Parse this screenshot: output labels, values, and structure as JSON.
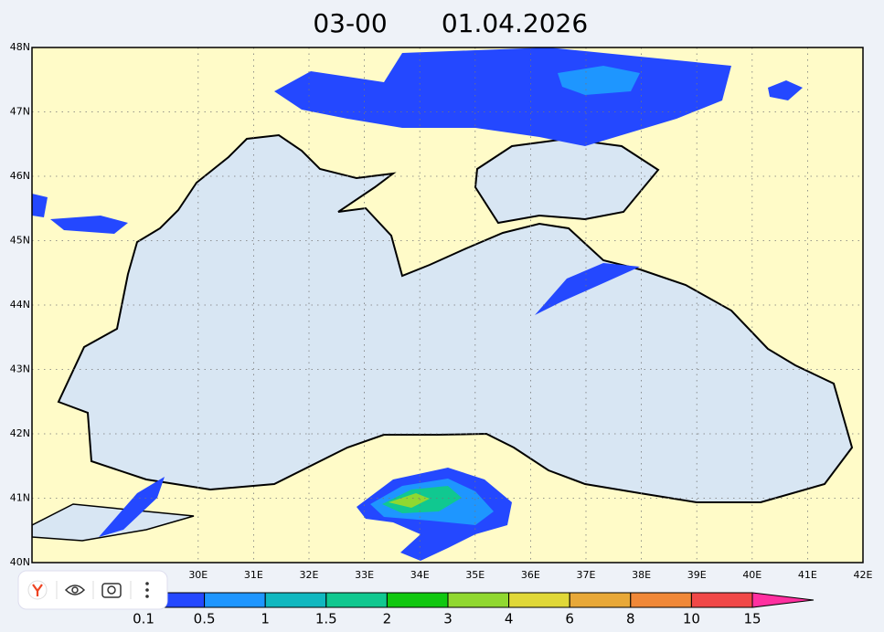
{
  "title": "03-00",
  "date": "01.04.2026",
  "lon_ticks": [
    {
      "value": 30,
      "label": "30E"
    },
    {
      "value": 31,
      "label": "31E"
    },
    {
      "value": 32,
      "label": "32E"
    },
    {
      "value": 33,
      "label": "33E"
    },
    {
      "value": 34,
      "label": "34E"
    },
    {
      "value": 35,
      "label": "35E"
    },
    {
      "value": 36,
      "label": "36E"
    },
    {
      "value": 37,
      "label": "37E"
    },
    {
      "value": 38,
      "label": "38E"
    },
    {
      "value": 39,
      "label": "39E"
    },
    {
      "value": 40,
      "label": "40E"
    },
    {
      "value": 41,
      "label": "41E"
    },
    {
      "value": 42,
      "label": "42E"
    }
  ],
  "lat_ticks": [
    {
      "value": 40,
      "label": "40N"
    },
    {
      "value": 41,
      "label": "41N"
    },
    {
      "value": 42,
      "label": "42N"
    },
    {
      "value": 43,
      "label": "43N"
    },
    {
      "value": 44,
      "label": "44N"
    },
    {
      "value": 45,
      "label": "45N"
    },
    {
      "value": 46,
      "label": "46N"
    },
    {
      "value": 47,
      "label": "47N"
    },
    {
      "value": 48,
      "label": "48N"
    }
  ],
  "legend": {
    "levels": [
      0.1,
      0.5,
      1,
      1.5,
      2,
      3,
      4,
      6,
      8,
      10,
      15
    ],
    "colors": [
      "#2448ff",
      "#1e96ff",
      "#10b8c0",
      "#10c890",
      "#10c810",
      "#90d830",
      "#e0d838",
      "#e8a838",
      "#f08838",
      "#f04848",
      "#ff30a0"
    ]
  }
}
